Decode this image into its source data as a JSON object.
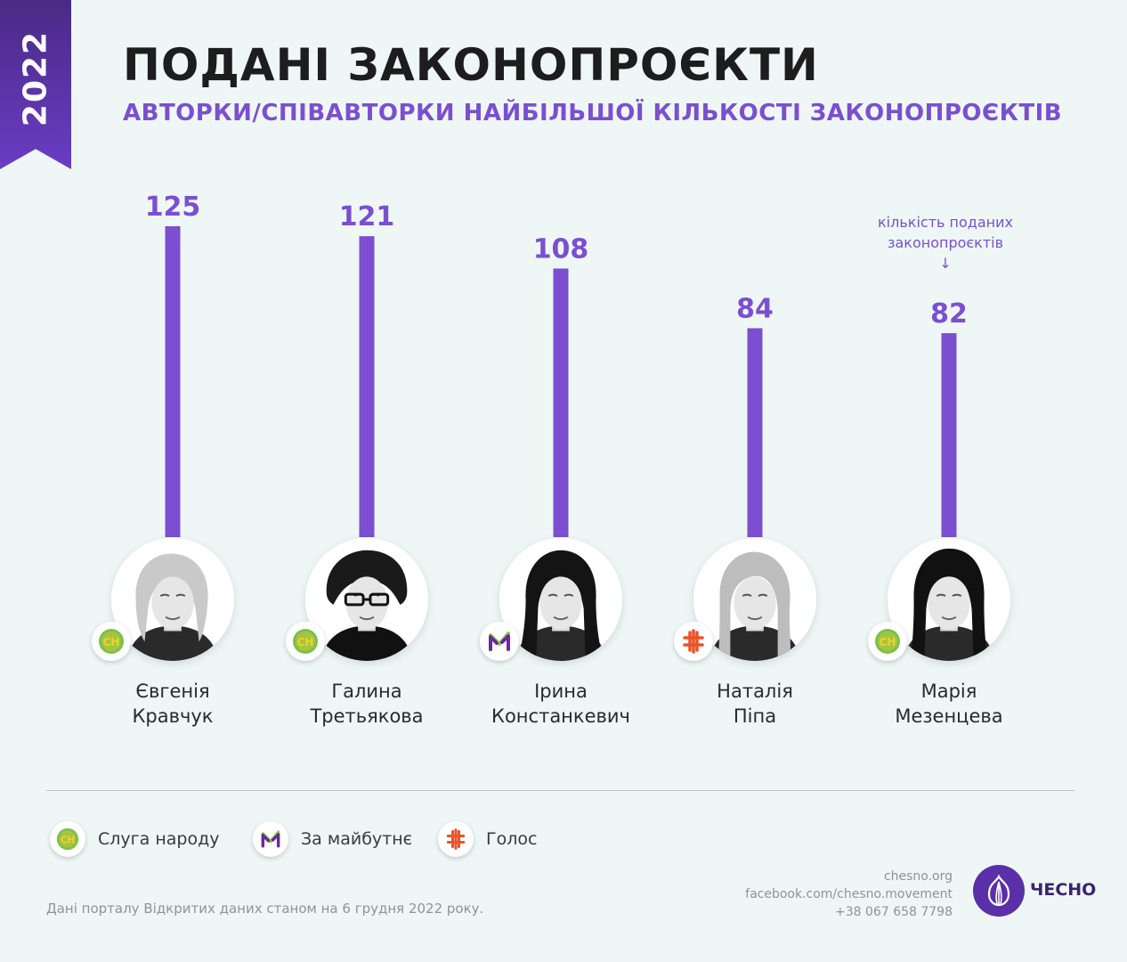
{
  "year": "2022",
  "title": "ПОДАНІ ЗАКОНОПРОЄКТИ",
  "subtitle": "АВТОРКИ/СПІВАВТОРКИ НАЙБІЛЬШОЇ КІЛЬКОСТІ ЗАКОНОПРОЄКТІВ",
  "annotation": {
    "line1": "кількість поданих",
    "line2": "законопроєктів",
    "arrow": "↓"
  },
  "chart_data": {
    "type": "bar",
    "categories": [
      "Євгенія Кравчук",
      "Галина Третьякова",
      "Ірина Констанкевич",
      "Наталія Піпа",
      "Марія Мезенцева"
    ],
    "values": [
      125,
      121,
      108,
      84,
      82
    ],
    "title": "ПОДАНІ ЗАКОНОПРОЄКТИ",
    "ylim": [
      0,
      125
    ],
    "bar_color": "#7b4fd0"
  },
  "people": [
    {
      "first": "Євгенія",
      "last": "Кравчук",
      "party": "Слуга народу",
      "badge": "СН"
    },
    {
      "first": "Галина",
      "last": "Третьякова",
      "party": "Слуга народу",
      "badge": "СН"
    },
    {
      "first": "Ірина",
      "last": "Констанкевич",
      "party": "За майбутнє",
      "badge": "M"
    },
    {
      "first": "Наталія",
      "last": "Піпа",
      "party": "Голос",
      "badge": "#"
    },
    {
      "first": "Марія",
      "last": "Мезенцева",
      "party": "Слуга народу",
      "badge": "СН"
    }
  ],
  "legend": [
    {
      "label": "Слуга народу",
      "badge": "СН",
      "icon": "sluha-narodu-icon",
      "color": "#f0d12a"
    },
    {
      "label": "За майбутнє",
      "badge": "M",
      "icon": "za-maibutnie-icon",
      "color": "#6a2a9c"
    },
    {
      "label": "Голос",
      "badge": "#",
      "icon": "holos-icon",
      "color": "#e8542a"
    }
  ],
  "colors": {
    "accent": "#7b4fd0",
    "background": "#eef7f6",
    "sluha_green": "#7cc04b",
    "sluha_yellow": "#f0d12a",
    "za_purple": "#6a2a9c",
    "za_green": "#8ccf3e",
    "holos_orange": "#e8542a"
  },
  "source": "Дані порталу Відкритих даних станом на 6 грудня 2022 року.",
  "contacts": [
    "chesno.org",
    "facebook.com/chesno.movement",
    "+38 067 658 7798"
  ],
  "logo_text": "ЧЕСНО"
}
